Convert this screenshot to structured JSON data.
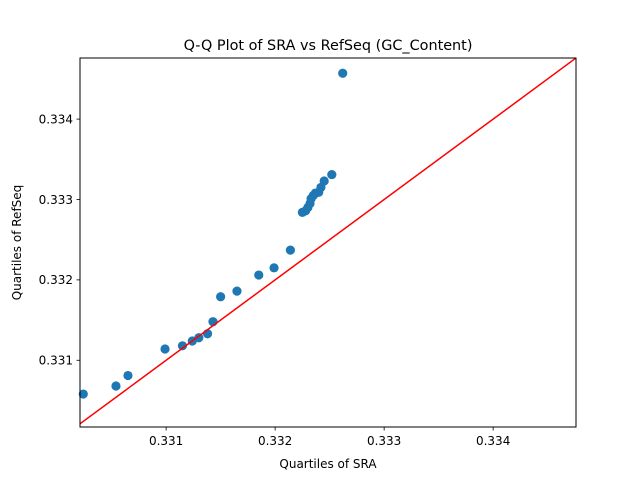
{
  "chart_data": {
    "type": "scatter",
    "title": "Q-Q Plot of SRA vs RefSeq (GC_Content)",
    "xlabel": "Quartiles of SRA",
    "ylabel": "Quartiles of RefSeq",
    "xlim": [
      0.33021,
      0.33476
    ],
    "ylim": [
      0.33017,
      0.33476
    ],
    "xticks": [
      0.331,
      0.332,
      0.333,
      0.334
    ],
    "yticks": [
      0.331,
      0.332,
      0.333,
      0.334
    ],
    "xtick_labels": [
      "0.331",
      "0.332",
      "0.333",
      "0.334"
    ],
    "ytick_labels": [
      "0.331",
      "0.332",
      "0.333",
      "0.334"
    ],
    "grid": false,
    "legend": null,
    "colors": {
      "points": "#1f77b4",
      "reference_line": "#ff0000"
    },
    "series": [
      {
        "x": [
          0.33024,
          0.33054,
          0.33065,
          0.33099,
          0.33115,
          0.33124,
          0.3313,
          0.33138,
          0.33143,
          0.3315,
          0.33165,
          0.33185,
          0.33199,
          0.33214,
          0.33225,
          0.33228,
          0.3323,
          0.33232,
          0.33233,
          0.33235,
          0.33237,
          0.3324,
          0.33242,
          0.33245,
          0.33252,
          0.33262
        ],
        "y": [
          0.33058,
          0.33068,
          0.33081,
          0.33114,
          0.33118,
          0.33124,
          0.33128,
          0.33133,
          0.33148,
          0.33179,
          0.33186,
          0.33206,
          0.33215,
          0.33237,
          0.33284,
          0.33286,
          0.3329,
          0.33295,
          0.33301,
          0.33305,
          0.33308,
          0.33309,
          0.33315,
          0.33323,
          0.33331,
          0.33457
        ]
      }
    ],
    "reference_line": {
      "slope": 1,
      "intercept": 0
    }
  }
}
